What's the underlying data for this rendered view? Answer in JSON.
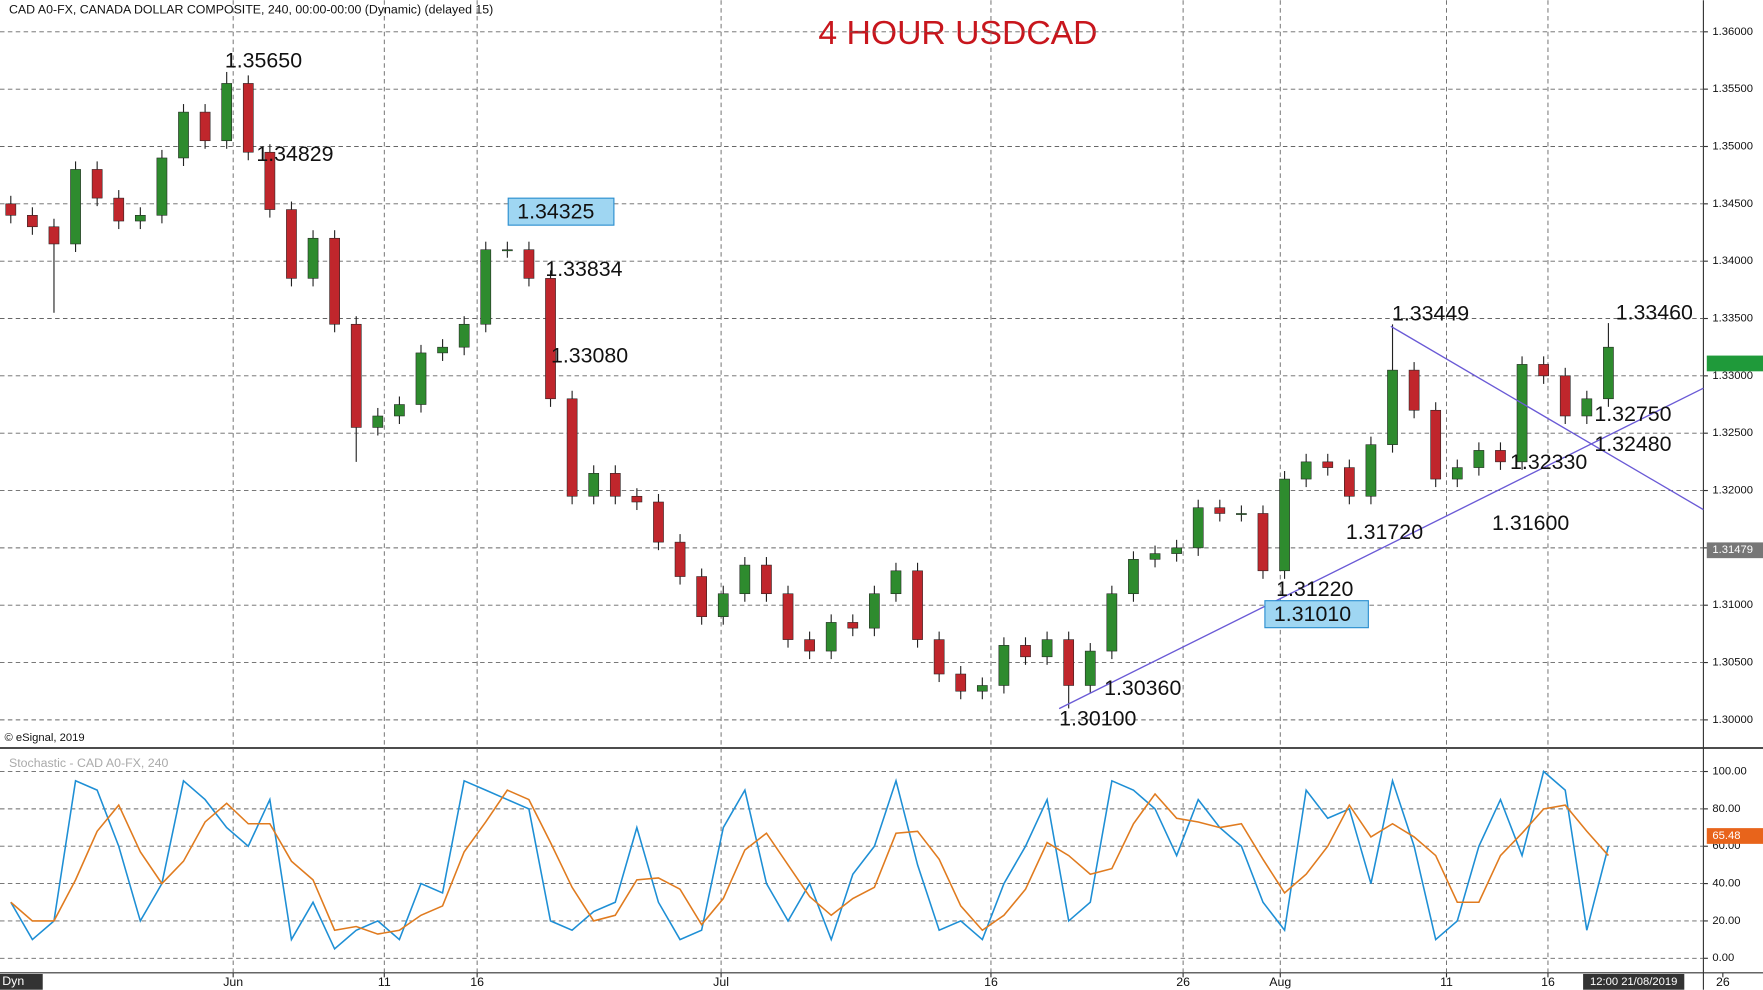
{
  "chart_data": [
    {
      "type": "candlestick",
      "title": "4 HOUR USDCAD",
      "subtitle": "CAD A0-FX, CANADA DOLLAR COMPOSITE, 240, 00:00-00:00 (Dynamic) (delayed 15)",
      "source": "© eSignal, 2019",
      "xlim": [
        -0.5,
        78.4
      ],
      "xticks": [
        {
          "value": 10.3,
          "label": "Jun"
        },
        {
          "value": 17.3,
          "label": "11"
        },
        {
          "value": 21.6,
          "label": "16"
        },
        {
          "value": 32.9,
          "label": "Jul"
        },
        {
          "value": 45.4,
          "label": "16"
        },
        {
          "value": 54.3,
          "label": "26"
        },
        {
          "value": 58.8,
          "label": "Aug"
        },
        {
          "value": 66.5,
          "label": "11"
        },
        {
          "value": 71.2,
          "label": "16"
        },
        {
          "value": 79.3,
          "label": "26"
        }
      ],
      "ylim": [
        1.29755,
        1.36275
      ],
      "yticks": [
        {
          "value": 1.3,
          "label": "1.30000"
        },
        {
          "value": 1.305,
          "label": "1.30500"
        },
        {
          "value": 1.31,
          "label": "1.31000"
        },
        {
          "value": 1.315,
          "label": "1.31500"
        },
        {
          "value": 1.32,
          "label": "1.32000"
        },
        {
          "value": 1.325,
          "label": "1.32500"
        },
        {
          "value": 1.33,
          "label": "1.33000"
        },
        {
          "value": 1.335,
          "label": "1.33500"
        },
        {
          "value": 1.34,
          "label": "1.34000"
        },
        {
          "value": 1.345,
          "label": "1.34500"
        },
        {
          "value": 1.35,
          "label": "1.35000"
        },
        {
          "value": 1.355,
          "label": "1.35500"
        },
        {
          "value": 1.36,
          "label": "1.36000"
        }
      ],
      "grid": true,
      "up_color": "#2e8b2e",
      "down_color": "#c0262c",
      "open": [
        1.345,
        1.344,
        1.343,
        1.3415,
        1.348,
        1.3455,
        1.3435,
        1.344,
        1.349,
        1.353,
        1.3505,
        1.3555,
        1.3495,
        1.3445,
        1.3385,
        1.342,
        1.3345,
        1.3255,
        1.3265,
        1.3275,
        1.332,
        1.3325,
        1.3345,
        1.341,
        1.341,
        1.3385,
        1.328,
        1.3195,
        1.3215,
        1.3195,
        1.319,
        1.3155,
        1.3125,
        1.309,
        1.311,
        1.3135,
        1.311,
        1.307,
        1.306,
        1.3085,
        1.308,
        1.311,
        1.313,
        1.307,
        1.304,
        1.3025,
        1.303,
        1.3065,
        1.3055,
        1.307,
        1.303,
        1.306,
        1.311,
        1.314,
        1.3145,
        1.315,
        1.3185,
        1.318,
        1.318,
        1.313,
        1.321,
        1.3225,
        1.322,
        1.3195,
        1.324,
        1.3305,
        1.327,
        1.321,
        1.322,
        1.3235,
        1.3225,
        1.331,
        1.33,
        1.3265,
        1.328
      ],
      "high": [
        1.3457,
        1.3447,
        1.3437,
        1.3487,
        1.3487,
        1.3462,
        1.3447,
        1.3497,
        1.3537,
        1.3537,
        1.3565,
        1.3562,
        1.3502,
        1.3452,
        1.3427,
        1.3427,
        1.3352,
        1.3272,
        1.3282,
        1.3327,
        1.3332,
        1.3352,
        1.3417,
        1.3417,
        1.3417,
        1.3392,
        1.3287,
        1.3222,
        1.3222,
        1.3202,
        1.3197,
        1.3162,
        1.3132,
        1.3117,
        1.3142,
        1.3142,
        1.3117,
        1.3077,
        1.3092,
        1.3092,
        1.3117,
        1.3137,
        1.3137,
        1.3077,
        1.3047,
        1.3037,
        1.3072,
        1.3072,
        1.3077,
        1.3077,
        1.3067,
        1.3117,
        1.3147,
        1.3152,
        1.3157,
        1.3192,
        1.3192,
        1.3187,
        1.3187,
        1.3217,
        1.3232,
        1.3232,
        1.3227,
        1.3247,
        1.33449,
        1.3312,
        1.3277,
        1.3227,
        1.3242,
        1.3242,
        1.3317,
        1.3317,
        1.3307,
        1.3287,
        1.3346
      ],
      "low": [
        1.3433,
        1.3423,
        1.3355,
        1.3408,
        1.3448,
        1.3428,
        1.3428,
        1.3433,
        1.3483,
        1.3498,
        1.3498,
        1.3488,
        1.3438,
        1.3378,
        1.3378,
        1.3338,
        1.3225,
        1.3248,
        1.3258,
        1.3268,
        1.3313,
        1.3318,
        1.3338,
        1.3403,
        1.3378,
        1.3273,
        1.3188,
        1.3188,
        1.3188,
        1.3183,
        1.3148,
        1.3118,
        1.3083,
        1.3083,
        1.3103,
        1.3103,
        1.3063,
        1.3053,
        1.3053,
        1.3073,
        1.3073,
        1.3103,
        1.3063,
        1.3033,
        1.3018,
        1.3018,
        1.3023,
        1.3048,
        1.3048,
        1.301,
        1.3023,
        1.3053,
        1.3103,
        1.3133,
        1.3138,
        1.3143,
        1.3173,
        1.3173,
        1.3123,
        1.3123,
        1.3203,
        1.3213,
        1.3188,
        1.3188,
        1.3233,
        1.3263,
        1.3203,
        1.3203,
        1.3213,
        1.3218,
        1.3218,
        1.3293,
        1.3258,
        1.3258,
        1.3273
      ],
      "close": [
        1.344,
        1.343,
        1.3415,
        1.348,
        1.3455,
        1.3435,
        1.344,
        1.349,
        1.353,
        1.3505,
        1.3555,
        1.3495,
        1.3445,
        1.3385,
        1.342,
        1.3345,
        1.3255,
        1.3265,
        1.3275,
        1.332,
        1.3325,
        1.3345,
        1.341,
        1.341,
        1.3385,
        1.328,
        1.3195,
        1.3215,
        1.3195,
        1.319,
        1.3155,
        1.3125,
        1.309,
        1.311,
        1.3135,
        1.311,
        1.307,
        1.306,
        1.3085,
        1.308,
        1.311,
        1.313,
        1.307,
        1.304,
        1.3025,
        1.303,
        1.3065,
        1.3055,
        1.307,
        1.303,
        1.306,
        1.311,
        1.314,
        1.3145,
        1.315,
        1.3185,
        1.318,
        1.318,
        1.313,
        1.321,
        1.3225,
        1.322,
        1.3195,
        1.324,
        1.3305,
        1.327,
        1.321,
        1.322,
        1.3235,
        1.3225,
        1.331,
        1.33,
        1.3265,
        1.328,
        1.3325
      ],
      "annotations": [
        "1.35650",
        "1.34829",
        "1.34325",
        "1.33834",
        "1.33080",
        "1.33449",
        "1.33460",
        "1.32750",
        "1.32480",
        "1.32330",
        "1.31720",
        "1.31600",
        "1.31220",
        "1.31010",
        "1.30360",
        "1.30100"
      ],
      "last_price": 1.31479
    },
    {
      "type": "line",
      "title": "Stochastic - CAD A0-FX, 240",
      "xlim": [
        -0.5,
        78.4
      ],
      "ylim": [
        -7.8,
        110.8
      ],
      "yticks": [
        {
          "value": 0,
          "label": "0.00"
        },
        {
          "value": 20,
          "label": "20.00"
        },
        {
          "value": 40,
          "label": "40.00"
        },
        {
          "value": 60,
          "label": "60.00"
        },
        {
          "value": 80,
          "label": "80.00"
        },
        {
          "value": 100,
          "label": "100.00"
        }
      ],
      "grid": true,
      "series": [
        {
          "color": "#1e8fd5",
          "values": [
            30,
            10,
            20,
            95,
            90,
            60,
            20,
            40,
            95,
            85,
            70,
            60,
            85,
            10,
            30,
            5,
            15,
            20,
            10,
            40,
            35,
            95,
            90,
            85,
            80,
            20,
            15,
            25,
            30,
            70,
            30,
            10,
            15,
            70,
            90,
            40,
            20,
            40,
            10,
            45,
            60,
            95,
            50,
            15,
            20,
            10,
            40,
            60,
            85,
            20,
            30,
            95,
            90,
            80,
            55,
            85,
            70,
            60,
            30,
            15,
            90,
            75,
            80,
            40,
            95,
            60,
            10,
            20,
            60,
            85,
            55,
            100,
            90,
            15,
            60
          ]
        },
        {
          "color": "#e07b1f",
          "values": [
            30,
            20,
            20,
            42,
            68,
            82,
            57,
            40,
            52,
            73,
            83,
            72,
            72,
            52,
            42,
            15,
            17,
            13,
            15,
            23,
            28,
            57,
            73,
            90,
            85,
            62,
            38,
            20,
            23,
            42,
            43,
            37,
            18,
            32,
            58,
            67,
            50,
            33,
            23,
            32,
            38,
            67,
            68,
            53,
            28,
            15,
            23,
            37,
            62,
            55,
            45,
            48,
            72,
            88,
            75,
            73,
            70,
            72,
            53,
            35,
            45,
            60,
            82,
            65,
            72,
            65,
            55,
            30,
            30,
            55,
            67,
            80,
            82,
            68,
            55
          ]
        }
      ],
      "last_value": 65.48
    }
  ],
  "ui": {
    "corner": "Dyn",
    "cursor_date": "12:00 21/08/2019"
  }
}
